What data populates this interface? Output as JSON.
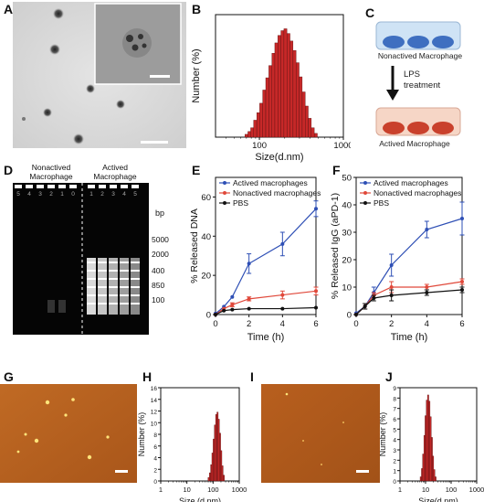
{
  "panel_labels": [
    "A",
    "B",
    "C",
    "D",
    "E",
    "F",
    "G",
    "H",
    "I",
    "J"
  ],
  "colors": {
    "red_bar": "#c62828",
    "blue_line": "#2e4fb5",
    "red_line": "#e0483a",
    "black_line": "#111111",
    "afm_bg": "#b5601e",
    "nonactived_dish": "#cfe3f5",
    "actived_dish": "#f6d6c6"
  },
  "panel_c": {
    "top_caption": "Nonactived Macrophage",
    "arrow_label_1": "LPS",
    "arrow_label_2": "treatment",
    "bottom_caption": "Actived Macrophage"
  },
  "panel_d": {
    "left_header_1": "Nonactived",
    "left_header_2": "Macrophage",
    "right_header_1": "Actived",
    "right_header_2": "Macrophage",
    "bp_label": "bp",
    "left_lanes": [
      "5",
      "4",
      "3",
      "2",
      "1",
      "0"
    ],
    "right_lanes": [
      "1",
      "2",
      "3",
      "4",
      "5"
    ],
    "ladder": [
      "5000",
      "2000",
      "400",
      "850",
      "100"
    ]
  },
  "chart_data": [
    {
      "id": "B",
      "type": "bar",
      "xlabel": "Size(d.nm)",
      "ylabel": "Number (%)",
      "xscale": "log",
      "xlim": [
        30,
        1000
      ],
      "ylim": [
        0,
        13
      ],
      "xticks": [
        "100",
        "1000"
      ],
      "x": [
        70,
        76,
        82,
        89,
        97,
        105,
        114,
        124,
        135,
        147,
        159,
        173,
        188,
        204,
        222,
        241,
        262,
        285,
        310,
        337,
        366,
        398,
        432,
        470
      ],
      "values": [
        0.3,
        0.6,
        1.0,
        1.8,
        2.6,
        3.6,
        5.0,
        6.3,
        7.6,
        8.9,
        10.0,
        10.8,
        11.3,
        11.5,
        11.0,
        10.2,
        9.2,
        7.9,
        6.4,
        4.8,
        3.3,
        2.0,
        1.0,
        0.4
      ]
    },
    {
      "id": "E",
      "type": "line",
      "xlabel": "Time (h)",
      "ylabel": "% Released DNA",
      "xlim": [
        0,
        6
      ],
      "ylim": [
        0,
        70
      ],
      "xticks": [
        0,
        2,
        4,
        6
      ],
      "yticks": [
        0,
        20,
        40,
        60
      ],
      "x": [
        0,
        0.5,
        1,
        2,
        4,
        6
      ],
      "series": [
        {
          "name": "Actived macrophages",
          "color": "#2e4fb5",
          "values": [
            0.5,
            4,
            9,
            26,
            36,
            54
          ],
          "err": [
            0,
            0,
            0,
            5,
            6,
            4
          ]
        },
        {
          "name": "Nonactived macrophages",
          "color": "#e0483a",
          "values": [
            0,
            3,
            5,
            8,
            10,
            12
          ],
          "err": [
            0,
            0,
            1,
            1,
            2,
            2
          ]
        },
        {
          "name": "PBS",
          "color": "#111111",
          "values": [
            0,
            2,
            2.5,
            3,
            3,
            3.5
          ],
          "err": [
            0,
            0,
            0,
            0,
            0,
            0
          ]
        }
      ]
    },
    {
      "id": "F",
      "type": "line",
      "xlabel": "Time (h)",
      "ylabel": "% Released IgG (aPD-1)",
      "xlim": [
        0,
        6
      ],
      "ylim": [
        0,
        50
      ],
      "xticks": [
        0,
        2,
        4,
        6
      ],
      "yticks": [
        0,
        10,
        20,
        30,
        40,
        50
      ],
      "x": [
        0,
        0.5,
        1,
        2,
        4,
        6
      ],
      "series": [
        {
          "name": "Actived macrophages",
          "color": "#2e4fb5",
          "values": [
            0.5,
            3,
            8,
            18,
            31,
            35
          ],
          "err": [
            0,
            1,
            2,
            4,
            3,
            6
          ]
        },
        {
          "name": "Nonactived macrophages",
          "color": "#e0483a",
          "values": [
            0,
            3,
            7,
            10,
            10,
            12
          ],
          "err": [
            0,
            1,
            1,
            2,
            1,
            1
          ]
        },
        {
          "name": "PBS",
          "color": "#111111",
          "values": [
            0,
            3,
            6,
            7,
            8,
            9
          ],
          "err": [
            0,
            1,
            1,
            2,
            1,
            1
          ]
        }
      ]
    },
    {
      "id": "H",
      "type": "bar",
      "xlabel": "Size (d.nm)",
      "ylabel": "Number (%)",
      "xscale": "log",
      "xlim": [
        1,
        1000
      ],
      "ylim": [
        0,
        16
      ],
      "xticks": [
        "1",
        "10",
        "100",
        "1000"
      ],
      "yticks": [
        0,
        2,
        4,
        6,
        8,
        10,
        12,
        14,
        16
      ],
      "x": [
        68,
        76,
        85,
        95,
        106,
        118,
        132,
        148,
        165,
        184,
        205,
        229,
        256
      ],
      "values": [
        0.6,
        1.4,
        2.8,
        4.8,
        7.2,
        9.6,
        11.4,
        11.8,
        10.6,
        8.2,
        5.2,
        2.6,
        1.0
      ]
    },
    {
      "id": "J",
      "type": "bar",
      "xlabel": "Size(d.nm)",
      "ylabel": "Number (%)",
      "xscale": "log",
      "xlim": [
        1,
        1000
      ],
      "ylim": [
        0,
        9
      ],
      "xticks": [
        "1",
        "10",
        "100",
        "1000"
      ],
      "yticks": [
        0,
        1,
        2,
        3,
        4,
        5,
        6,
        7,
        8,
        9
      ],
      "x": [
        6.5,
        7.3,
        8.1,
        9.1,
        10.1,
        11.3,
        12.6,
        14.1,
        15.7,
        17.6,
        19.6,
        21.9,
        24.5
      ],
      "values": [
        0.4,
        1.2,
        2.6,
        4.4,
        6.3,
        7.8,
        8.3,
        7.7,
        6.2,
        4.2,
        2.4,
        1.1,
        0.4
      ]
    }
  ]
}
